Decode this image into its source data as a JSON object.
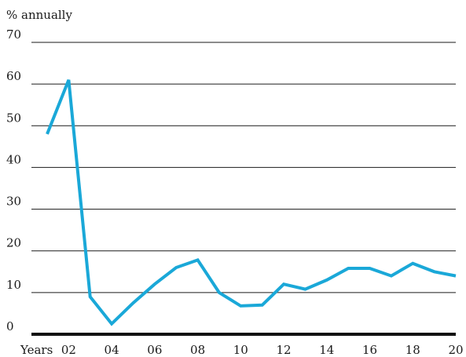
{
  "chart_data": {
    "type": "line",
    "title": "",
    "ylabel": "% annually",
    "xlabel": "Years",
    "ylim": [
      0,
      70
    ],
    "xlim": [
      2000,
      2020
    ],
    "grid": true,
    "y_ticks": [
      0,
      10,
      20,
      30,
      40,
      50,
      60,
      70
    ],
    "y_tick_labels": [
      "0",
      "10",
      "20",
      "30",
      "40",
      "50",
      "60",
      "70"
    ],
    "x_ticks": [
      2002,
      2004,
      2006,
      2008,
      2010,
      2012,
      2014,
      2016,
      2018,
      2020
    ],
    "x_tick_labels": [
      "02",
      "04",
      "06",
      "08",
      "10",
      "12",
      "14",
      "16",
      "18",
      "20"
    ],
    "series": [
      {
        "color": "#1aa8d8",
        "x": [
          2001,
          2002,
          2003,
          2004,
          2005,
          2006,
          2007,
          2008,
          2009,
          2010,
          2011,
          2012,
          2013,
          2014,
          2015,
          2016,
          2017,
          2018,
          2019,
          2020
        ],
        "values": [
          48,
          61,
          9,
          2.5,
          7.5,
          12,
          16,
          17.8,
          10,
          6.8,
          7,
          12,
          10.8,
          13,
          15.8,
          15.8,
          14,
          17,
          15,
          14
        ]
      }
    ]
  }
}
